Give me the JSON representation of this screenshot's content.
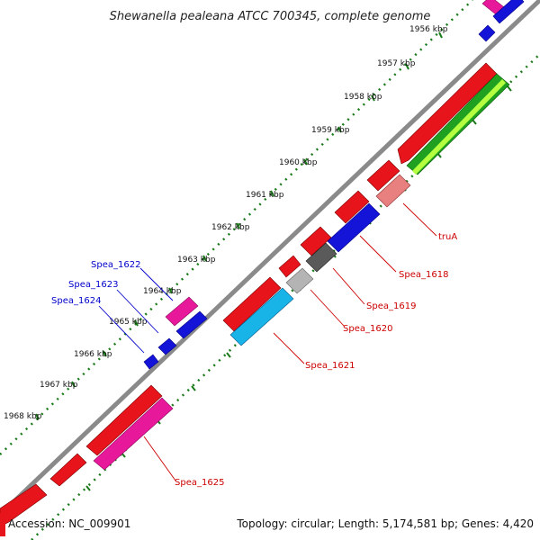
{
  "title": "Shewanella pealeana ATCC 700345, complete genome",
  "footer": {
    "accession": "Accession: NC_009901",
    "summary": "Topology: circular; Length: 5,174,581 bp; Genes: 4,420"
  },
  "ticks": [
    "1956 kbp",
    "1957 kbp",
    "1958 kbp",
    "1959 kbp",
    "1960 kbp",
    "1961 kbp",
    "1962 kbp",
    "1963 kbp",
    "1964 kbp",
    "1965 kbp",
    "1966 kbp",
    "1967 kbp",
    "1968 kbp"
  ],
  "gene_labels": {
    "trua": "truA",
    "spea_1618": "Spea_1618",
    "spea_1619": "Spea_1619",
    "spea_1620": "Spea_1620",
    "spea_1621": "Spea_1621",
    "spea_1622": "Spea_1622",
    "spea_1623": "Spea_1623",
    "spea_1624": "Spea_1624",
    "spea_1625": "Spea_1625"
  },
  "colors": {
    "backbone": "#8a8a8a",
    "tick_dots": "#1a7a1a",
    "red": "#e8141c",
    "blue": "#1414d8",
    "magenta": "#e8189a",
    "cyan": "#18b4e8",
    "dark_gray": "#5a5a5a",
    "light_gray": "#b4b4b4",
    "pink": "#e88080",
    "green": "#20a020",
    "yellow_green": "#b4ff40",
    "label_red": "#cc0000",
    "label_blue": "#0000cc"
  }
}
